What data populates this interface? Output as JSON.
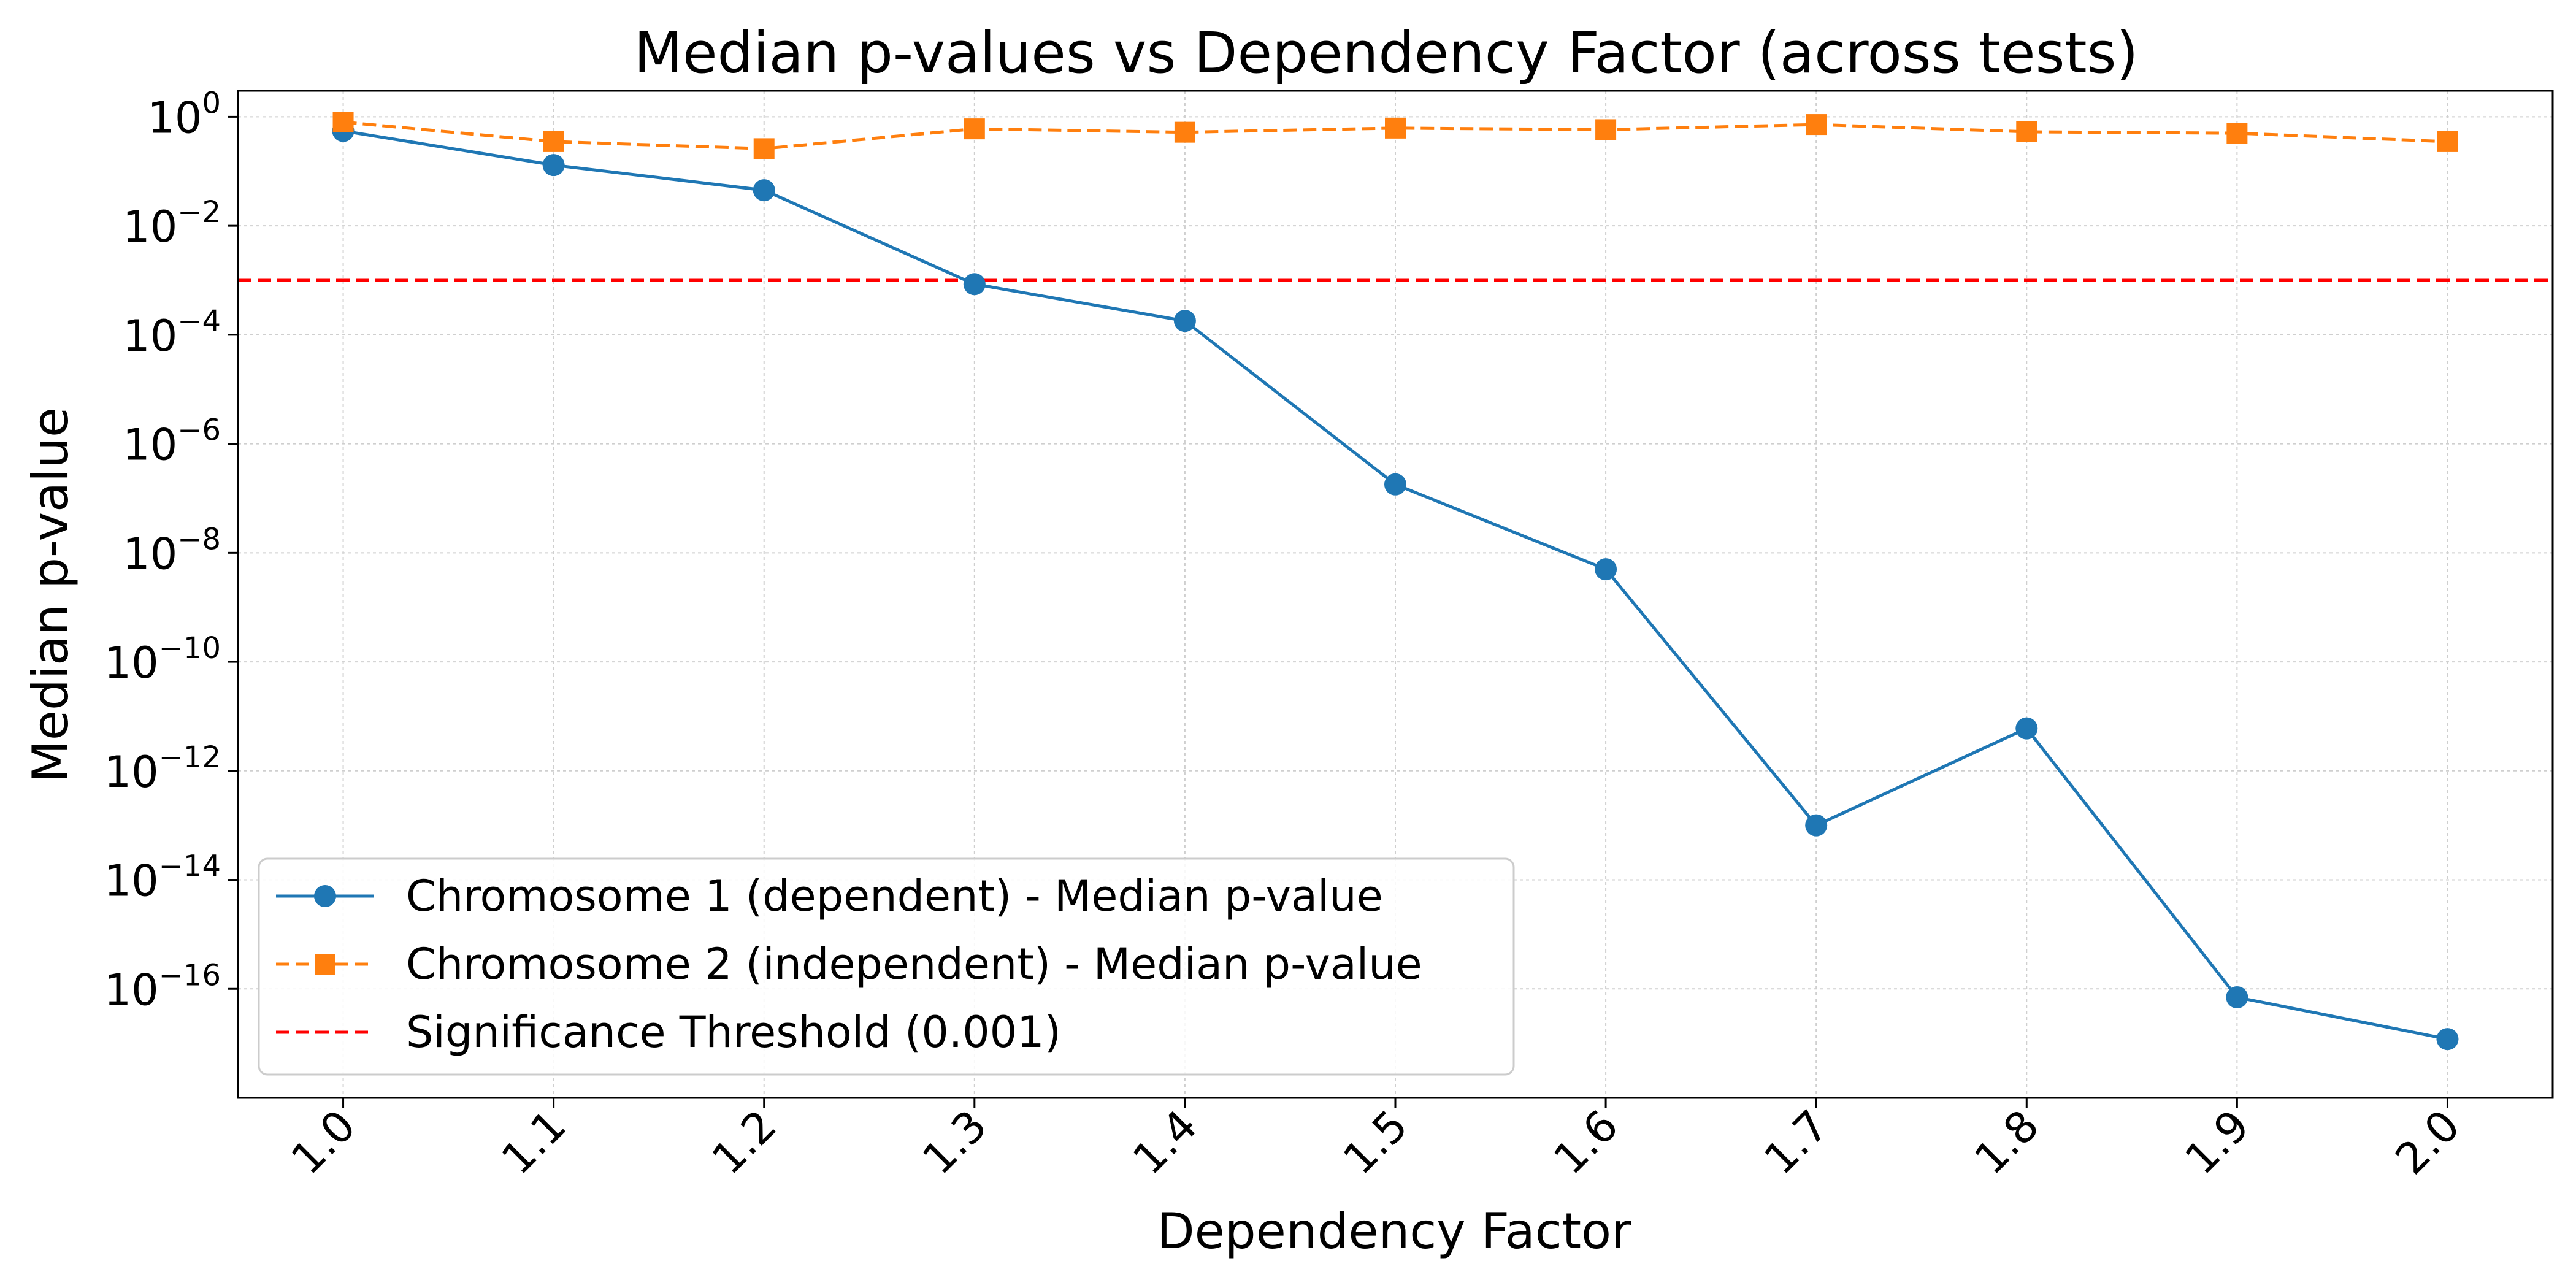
{
  "chart_data": {
    "type": "line",
    "title": "Median p-values vs Dependency Factor (across tests)",
    "xlabel": "Dependency Factor",
    "ylabel": "Median p-value",
    "x": [
      1.0,
      1.1,
      1.2,
      1.3,
      1.4,
      1.5,
      1.6,
      1.7,
      1.8,
      1.9,
      2.0
    ],
    "x_tick_labels": [
      "1.0",
      "1.1",
      "1.2",
      "1.3",
      "1.4",
      "1.5",
      "1.6",
      "1.7",
      "1.8",
      "1.9",
      "2.0"
    ],
    "xlim": [
      0.95,
      2.05
    ],
    "y_scale": "log",
    "ylim": [
      1e-18,
      3
    ],
    "y_ticks": [
      {
        "base": "10",
        "exp": "0",
        "value": 1
      },
      {
        "base": "10",
        "exp": "−2",
        "value": 0.01
      },
      {
        "base": "10",
        "exp": "−4",
        "value": 0.0001
      },
      {
        "base": "10",
        "exp": "−6",
        "value": 1e-06
      },
      {
        "base": "10",
        "exp": "−8",
        "value": 1e-08
      },
      {
        "base": "10",
        "exp": "−10",
        "value": 1e-10
      },
      {
        "base": "10",
        "exp": "−12",
        "value": 1e-12
      },
      {
        "base": "10",
        "exp": "−14",
        "value": 1e-14
      },
      {
        "base": "10",
        "exp": "−16",
        "value": 1e-16
      }
    ],
    "grid": true,
    "legend_position": "lower-left",
    "series": [
      {
        "name": "Chromosome 1 (dependent) - Median p-value",
        "color": "#1f77b4",
        "marker": "circle",
        "line_style": "solid",
        "values": [
          0.55,
          0.13,
          0.045,
          0.00085,
          0.00018,
          1.8e-07,
          5e-09,
          1e-13,
          6e-12,
          7e-17,
          1.2e-17
        ]
      },
      {
        "name": "Chromosome 2 (independent) - Median p-value",
        "color": "#ff7f0e",
        "marker": "square",
        "line_style": "dashed",
        "values": [
          0.8,
          0.35,
          0.26,
          0.6,
          0.52,
          0.62,
          0.58,
          0.72,
          0.53,
          0.5,
          0.35
        ]
      }
    ],
    "threshold": {
      "name": "Significance Threshold (0.001)",
      "value": 0.001,
      "color": "#ff0000",
      "line_style": "dashed"
    }
  }
}
